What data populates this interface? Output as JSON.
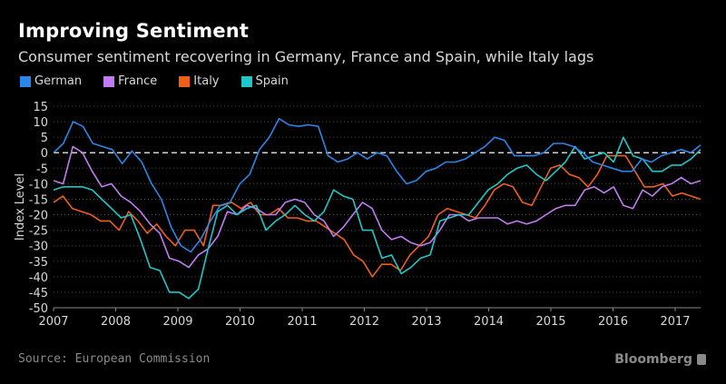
{
  "header": {
    "title": "Improving Sentiment",
    "subtitle": "Consumer sentiment recovering in Germany, France and Spain, while Italy lags"
  },
  "footer": {
    "source": "Source: European Commission",
    "brand": "Bloomberg"
  },
  "chart_data": {
    "type": "line",
    "title": "Improving Sentiment",
    "subtitle": "Consumer sentiment recovering in Germany, France and Spain, while Italy lags",
    "xlabel": "",
    "ylabel": "Index Level",
    "xlim": [
      2007.0,
      2017.25
    ],
    "ylim": [
      -50,
      15
    ],
    "yticks": [
      15,
      10,
      5,
      0,
      -5,
      -10,
      -15,
      -20,
      -25,
      -30,
      -35,
      -40,
      -45,
      -50
    ],
    "xticks": [
      "2007",
      "2008",
      "2009",
      "2010",
      "2011",
      "2012",
      "2013",
      "2014",
      "2015",
      "2016",
      "2017"
    ],
    "grid": "horizontal dotted",
    "reference_line": 0,
    "legend": "top-left",
    "x_step_months": 2,
    "x_start": 2007.0,
    "series": [
      {
        "name": "German",
        "color": "#2a86e8",
        "values": [
          0,
          3,
          10,
          8.5,
          3,
          2,
          1,
          -3.5,
          0.5,
          -3,
          -10,
          -15,
          -24,
          -30,
          -32,
          -28,
          -22,
          -17,
          -16,
          -10,
          -7,
          1,
          5,
          11,
          9,
          8.5,
          9,
          8.5,
          -1,
          -3,
          -2,
          0,
          -2,
          0,
          -1,
          -6,
          -10,
          -9,
          -6,
          -5,
          -3,
          -3,
          -2,
          0,
          2,
          5,
          4,
          -1,
          -1,
          -1,
          0,
          3,
          3,
          2,
          0,
          -3,
          -4,
          -5,
          -6,
          -6,
          -2,
          -3,
          -1,
          0,
          1,
          0,
          2.5
        ]
      },
      {
        "name": "France",
        "color": "#c07cf0",
        "values": [
          -9,
          -10,
          2,
          0,
          -6,
          -11,
          -10,
          -14,
          -16,
          -19,
          -23,
          -26,
          -34,
          -35,
          -37,
          -33,
          -31,
          -27,
          -19,
          -20,
          -17,
          -18,
          -20,
          -20,
          -16,
          -15,
          -16,
          -20,
          -22,
          -27,
          -24,
          -20,
          -16,
          -18,
          -25,
          -28,
          -27,
          -29,
          -30,
          -29,
          -25,
          -20,
          -20,
          -22,
          -21,
          -21,
          -21,
          -23,
          -22,
          -23,
          -22,
          -20,
          -18,
          -17,
          -17,
          -12,
          -11,
          -13,
          -11,
          -17,
          -18,
          -12,
          -14,
          -11,
          -10,
          -8,
          -10,
          -9
        ]
      },
      {
        "name": "Italy",
        "color": "#f05f18",
        "values": [
          -16,
          -14,
          -18,
          -19,
          -20,
          -22,
          -22,
          -25,
          -19,
          -22,
          -26,
          -23,
          -27,
          -30,
          -25,
          -25,
          -30,
          -17,
          -17,
          -16,
          -18,
          -16,
          -20,
          -20,
          -18,
          -21,
          -21,
          -22,
          -22,
          -24,
          -26,
          -28,
          -33,
          -35,
          -40,
          -36,
          -36,
          -38,
          -33,
          -30,
          -27,
          -20,
          -18,
          -19,
          -20,
          -21,
          -17,
          -12,
          -10,
          -11,
          -16,
          -17,
          -11,
          -5,
          -4,
          -7,
          -8,
          -11,
          -7,
          -1,
          -1,
          -1,
          -6,
          -11,
          -11,
          -10,
          -14,
          -13,
          -14,
          -15
        ]
      },
      {
        "name": "Spain",
        "color": "#1ec8c8",
        "values": [
          -12,
          -11,
          -11,
          -11,
          -12,
          -15,
          -18,
          -21,
          -20,
          -28,
          -37,
          -38,
          -45,
          -45,
          -47,
          -44,
          -31,
          -19,
          -17,
          -20,
          -18,
          -17,
          -25,
          -22,
          -20,
          -17,
          -20,
          -22,
          -19,
          -12,
          -14,
          -15,
          -25,
          -25,
          -34,
          -33,
          -39,
          -37,
          -34,
          -33,
          -22,
          -21,
          -20,
          -20,
          -16,
          -12,
          -10,
          -7,
          -5,
          -4,
          -7,
          -9,
          -6,
          -3,
          2,
          -2,
          -1,
          0,
          -3,
          5,
          -1,
          -2,
          -6,
          -6,
          -4,
          -4,
          -2,
          1
        ]
      }
    ]
  }
}
